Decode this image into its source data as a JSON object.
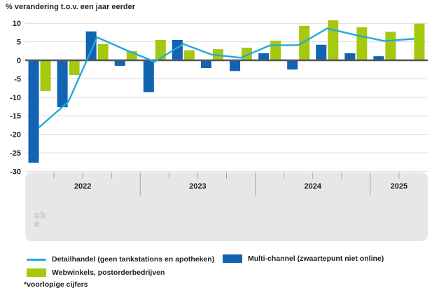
{
  "chart": {
    "title": "% verandering t.o.v. een jaar eerder",
    "footnote": "*voorlopige cijfers",
    "watermark": "cbs"
  },
  "legend": [
    {
      "label": "Detailhandel (geen tankstations en apotheken)",
      "swatch": "line",
      "color": "#23a9dc"
    },
    {
      "label": "Multi-channel (zwaartepunt niet online)",
      "swatch": "rect",
      "color": "#1263b2"
    },
    {
      "label": "Webwinkels, postorderbedrijven",
      "swatch": "rect",
      "color": "#a5c90f"
    }
  ],
  "colors": {
    "line": "#23a9dc",
    "multichannel": "#1263b2",
    "webwinkels": "#a5c90f",
    "grid": "#dcdcdc",
    "zero_line": "#55565a",
    "band": "#e7e7e7",
    "tick": "#a8a8a8",
    "text": "#1f1f1f",
    "logo": "#c6c6c6"
  },
  "chart_data": {
    "type": "bar",
    "title": "% verandering t.o.v. een jaar eerder",
    "xlabel": "",
    "ylabel": "% verandering t.o.v. een jaar eerder",
    "ylim": [
      -30,
      10
    ],
    "yticks": [
      10,
      5,
      0,
      -5,
      -10,
      -15,
      -20,
      -25,
      -30
    ],
    "grid": true,
    "legend_position": "bottom",
    "x_years": [
      "2022",
      "2023",
      "2024",
      "2025"
    ],
    "quarters_per_year": [
      4,
      4,
      4,
      2
    ],
    "series": [
      {
        "name": "Detailhandel (geen tankstations en apotheken)",
        "type": "line",
        "color": "#23a9dc",
        "values": [
          -18.0,
          -11.2,
          6.2,
          2.8,
          -0.4,
          4.4,
          1.5,
          0.7,
          4.0,
          4.1,
          8.6,
          6.8,
          5.2,
          5.8
        ]
      },
      {
        "name": "Multi-channel (zwaartepunt niet online)",
        "type": "bar",
        "color": "#1263b2",
        "values": [
          -27.7,
          -12.7,
          7.8,
          -1.5,
          -8.6,
          5.5,
          -2.1,
          -2.9,
          1.9,
          -2.5,
          4.2,
          1.9,
          1.1,
          null
        ]
      },
      {
        "name": "Webwinkels, postorderbedrijven",
        "type": "bar",
        "color": "#a5c90f",
        "values": [
          -8.3,
          -4.0,
          4.4,
          2.5,
          5.5,
          2.7,
          3.0,
          3.4,
          5.3,
          9.3,
          10.8,
          8.9,
          7.7,
          9.9
        ]
      }
    ]
  }
}
